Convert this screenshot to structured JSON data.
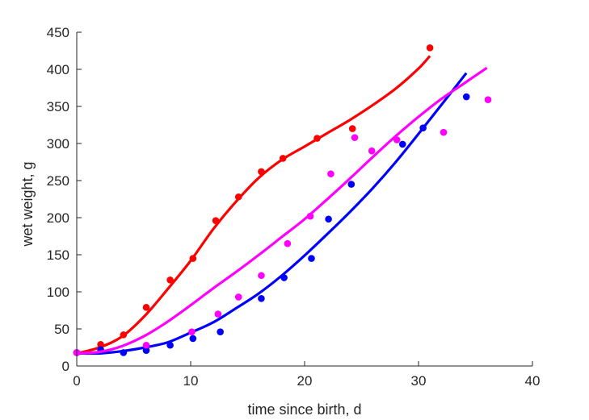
{
  "chart_data": {
    "type": "scatter",
    "xlabel": "time since birth, d",
    "ylabel": "wet weight, g",
    "xlim": [
      0,
      40
    ],
    "ylim": [
      0,
      450
    ],
    "xticks": [
      0,
      10,
      20,
      30,
      40
    ],
    "yticks": [
      0,
      50,
      100,
      150,
      200,
      250,
      300,
      350,
      400,
      450
    ],
    "grid": false,
    "box": "left-bottom",
    "series": [
      {
        "color": "#ff0000",
        "points": [
          [
            0,
            18
          ],
          [
            2.1,
            29
          ],
          [
            4.1,
            42
          ],
          [
            6.1,
            79
          ],
          [
            8.2,
            116
          ],
          [
            10.2,
            145
          ],
          [
            12.2,
            196
          ],
          [
            14.2,
            228
          ],
          [
            16.2,
            262
          ],
          [
            18.1,
            280
          ],
          [
            21.1,
            307
          ],
          [
            24.2,
            320
          ],
          [
            31,
            429
          ]
        ],
        "fit": [
          [
            0,
            17
          ],
          [
            2,
            25
          ],
          [
            4,
            40
          ],
          [
            6,
            68
          ],
          [
            8,
            104
          ],
          [
            10,
            142
          ],
          [
            12,
            185
          ],
          [
            14,
            222
          ],
          [
            16,
            254
          ],
          [
            18,
            278
          ],
          [
            20,
            296
          ],
          [
            22,
            314
          ],
          [
            24,
            332
          ],
          [
            26,
            352
          ],
          [
            28,
            374
          ],
          [
            30,
            401
          ],
          [
            31,
            418
          ]
        ]
      },
      {
        "color": "#0000ff",
        "points": [
          [
            0,
            18
          ],
          [
            2.1,
            22
          ],
          [
            4.1,
            18
          ],
          [
            6.1,
            21
          ],
          [
            8.2,
            28
          ],
          [
            10.2,
            37
          ],
          [
            12.6,
            46
          ],
          [
            16.2,
            91
          ],
          [
            18.2,
            119
          ],
          [
            20.6,
            145
          ],
          [
            22.1,
            198
          ],
          [
            24.1,
            245
          ],
          [
            28.6,
            299
          ],
          [
            30.4,
            321
          ],
          [
            34.2,
            363
          ]
        ],
        "fit": [
          [
            0,
            17
          ],
          [
            2,
            17
          ],
          [
            4,
            20
          ],
          [
            6,
            25
          ],
          [
            8,
            32
          ],
          [
            10,
            45
          ],
          [
            12,
            59
          ],
          [
            14,
            78
          ],
          [
            16,
            98
          ],
          [
            18,
            122
          ],
          [
            20,
            149
          ],
          [
            22,
            178
          ],
          [
            24,
            208
          ],
          [
            26,
            240
          ],
          [
            28,
            275
          ],
          [
            30,
            313
          ],
          [
            32,
            352
          ],
          [
            34.2,
            395
          ]
        ]
      },
      {
        "color": "#ff00ff",
        "points": [
          [
            0,
            18
          ],
          [
            6.1,
            28
          ],
          [
            10.1,
            46
          ],
          [
            12.4,
            70
          ],
          [
            14.2,
            93
          ],
          [
            16.2,
            122
          ],
          [
            18.5,
            165
          ],
          [
            20.5,
            202
          ],
          [
            22.3,
            259
          ],
          [
            24.4,
            308
          ],
          [
            25.9,
            290
          ],
          [
            28.1,
            305
          ],
          [
            32.2,
            315
          ],
          [
            36.1,
            359
          ]
        ],
        "fit": [
          [
            0,
            17
          ],
          [
            2,
            19
          ],
          [
            4,
            27
          ],
          [
            6,
            41
          ],
          [
            8,
            60
          ],
          [
            10,
            82
          ],
          [
            12,
            105
          ],
          [
            14,
            127
          ],
          [
            16,
            150
          ],
          [
            18,
            174
          ],
          [
            20,
            198
          ],
          [
            22,
            225
          ],
          [
            24,
            253
          ],
          [
            26,
            282
          ],
          [
            28,
            310
          ],
          [
            30,
            336
          ],
          [
            32,
            360
          ],
          [
            34,
            381
          ],
          [
            36,
            402
          ]
        ]
      }
    ]
  }
}
